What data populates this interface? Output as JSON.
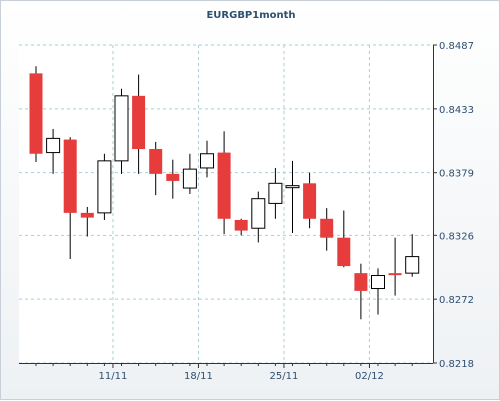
{
  "chart_data": {
    "type": "candlestick",
    "title": "EURGBP1month",
    "y_ticks": [
      "0.8487",
      "0.8433",
      "0.8379",
      "0.8326",
      "0.8272",
      "0.8218"
    ],
    "ylim": [
      0.8218,
      0.8487
    ],
    "x_ticks": [
      {
        "label": "11/11",
        "candle_index": 4.5
      },
      {
        "label": "18/11",
        "candle_index": 9.5
      },
      {
        "label": "25/11",
        "candle_index": 14.5
      },
      {
        "label": "02/12",
        "candle_index": 19.5
      }
    ],
    "grid": true,
    "axis_side": "right",
    "colors": {
      "bullish": "#ffffff",
      "bearish": "#e63c3c",
      "grid": "#9fd3d8",
      "text": "#2f4f6f",
      "axis": "#333333"
    },
    "candles": [
      {
        "open": 0.8463,
        "high": 0.8469,
        "low": 0.8388,
        "close": 0.8395
      },
      {
        "open": 0.8396,
        "high": 0.8416,
        "low": 0.8378,
        "close": 0.8408
      },
      {
        "open": 0.8407,
        "high": 0.8409,
        "low": 0.8306,
        "close": 0.8345
      },
      {
        "open": 0.8345,
        "high": 0.835,
        "low": 0.8325,
        "close": 0.8341
      },
      {
        "open": 0.8345,
        "high": 0.8395,
        "low": 0.8339,
        "close": 0.8389
      },
      {
        "open": 0.8389,
        "high": 0.845,
        "low": 0.8378,
        "close": 0.8444
      },
      {
        "open": 0.8444,
        "high": 0.8462,
        "low": 0.8378,
        "close": 0.8399
      },
      {
        "open": 0.8399,
        "high": 0.8405,
        "low": 0.836,
        "close": 0.8378
      },
      {
        "open": 0.8378,
        "high": 0.839,
        "low": 0.8357,
        "close": 0.8372
      },
      {
        "open": 0.8366,
        "high": 0.8395,
        "low": 0.8361,
        "close": 0.8382
      },
      {
        "open": 0.8383,
        "high": 0.8406,
        "low": 0.8375,
        "close": 0.8395
      },
      {
        "open": 0.8396,
        "high": 0.8414,
        "low": 0.8327,
        "close": 0.834
      },
      {
        "open": 0.8339,
        "high": 0.834,
        "low": 0.8326,
        "close": 0.833
      },
      {
        "open": 0.8332,
        "high": 0.8363,
        "low": 0.832,
        "close": 0.8357
      },
      {
        "open": 0.8353,
        "high": 0.8383,
        "low": 0.834,
        "close": 0.837
      },
      {
        "open": 0.8367,
        "high": 0.8389,
        "low": 0.8328,
        "close": 0.8368
      },
      {
        "open": 0.837,
        "high": 0.8379,
        "low": 0.8332,
        "close": 0.834
      },
      {
        "open": 0.834,
        "high": 0.8349,
        "low": 0.8313,
        "close": 0.8324
      },
      {
        "open": 0.8324,
        "high": 0.8347,
        "low": 0.8299,
        "close": 0.83
      },
      {
        "open": 0.8294,
        "high": 0.8302,
        "low": 0.8255,
        "close": 0.8279
      },
      {
        "open": 0.8281,
        "high": 0.8298,
        "low": 0.8259,
        "close": 0.8292
      },
      {
        "open": 0.8294,
        "high": 0.8324,
        "low": 0.8275,
        "close": 0.8293
      },
      {
        "open": 0.8294,
        "high": 0.8327,
        "low": 0.8291,
        "close": 0.8308
      }
    ]
  }
}
